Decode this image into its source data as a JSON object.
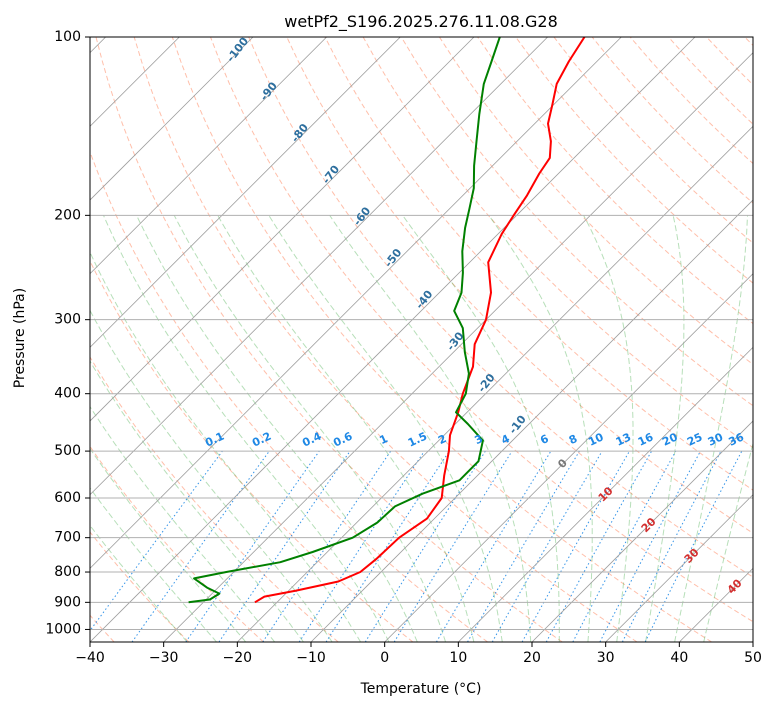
{
  "chart_data": {
    "type": "skew-t",
    "title": "wetPf2_S196.2025.276.11.08.G28",
    "xlabel": "Temperature (°C)",
    "ylabel": "Pressure (hPa)",
    "xlim": [
      -40,
      50
    ],
    "ylim": [
      1050,
      100
    ],
    "y_scale": "log",
    "x_ticks": [
      -40,
      -30,
      -20,
      -10,
      0,
      10,
      20,
      30,
      40,
      50
    ],
    "y_ticks": [
      100,
      200,
      300,
      400,
      500,
      600,
      700,
      800,
      900,
      1000
    ],
    "grid": true,
    "isotherm_step": 10,
    "dry_adiabat_label_values": [
      "-100",
      "-90",
      "-80",
      "-70",
      "-60",
      "-50",
      "-40",
      "-30",
      "-20",
      "-10"
    ],
    "moist_adiabat_label_values": [
      "0",
      "10",
      "20",
      "30",
      "40"
    ],
    "mixing_ratio_labels": [
      "0.1",
      "0.2",
      "0.4",
      "0.6",
      "1",
      "1.5",
      "2",
      "3",
      "4",
      "6",
      "8",
      "10",
      "13",
      "16",
      "20",
      "25",
      "30",
      "36"
    ],
    "colors": {
      "temperature": "#ff0000",
      "dewpoint": "#008000",
      "dry_adiabat": "#ff7043",
      "moist_adiabat": "#4caf50",
      "mixing_ratio": "#1e88e5",
      "dry_adiabat_label": "#2e6f9e",
      "moist_adiabat_label": "#d32f2f",
      "mixing_ratio_label": "#1e88e5",
      "isotherm": "#9e9e9e"
    },
    "series": [
      {
        "key": "temperature",
        "values": [
          {
            "p": 900,
            "t": -23
          },
          {
            "p": 880,
            "t": -22.5
          },
          {
            "p": 860,
            "t": -19
          },
          {
            "p": 830,
            "t": -14.5
          },
          {
            "p": 800,
            "t": -12.8
          },
          {
            "p": 760,
            "t": -12.4
          },
          {
            "p": 700,
            "t": -12.2
          },
          {
            "p": 650,
            "t": -11
          },
          {
            "p": 600,
            "t": -11.8
          },
          {
            "p": 550,
            "t": -14.5
          },
          {
            "p": 500,
            "t": -17.2
          },
          {
            "p": 470,
            "t": -19.2
          },
          {
            "p": 430,
            "t": -21.2
          },
          {
            "p": 400,
            "t": -23.1
          },
          {
            "p": 360,
            "t": -25.4
          },
          {
            "p": 330,
            "t": -28.2
          },
          {
            "p": 300,
            "t": -30
          },
          {
            "p": 270,
            "t": -33
          },
          {
            "p": 240,
            "t": -37.5
          },
          {
            "p": 215,
            "t": -39.5
          },
          {
            "p": 200,
            "t": -40.4
          },
          {
            "p": 185,
            "t": -41.3
          },
          {
            "p": 170,
            "t": -42.6
          },
          {
            "p": 160,
            "t": -43.3
          },
          {
            "p": 150,
            "t": -45.4
          },
          {
            "p": 140,
            "t": -48.2
          },
          {
            "p": 130,
            "t": -50.2
          },
          {
            "p": 120,
            "t": -52.4
          },
          {
            "p": 110,
            "t": -53.8
          },
          {
            "p": 100,
            "t": -55
          }
        ]
      },
      {
        "key": "dewpoint",
        "values": [
          {
            "p": 900,
            "t": -32
          },
          {
            "p": 890,
            "t": -29.5
          },
          {
            "p": 870,
            "t": -29
          },
          {
            "p": 850,
            "t": -31.5
          },
          {
            "p": 820,
            "t": -34.5
          },
          {
            "p": 800,
            "t": -31
          },
          {
            "p": 770,
            "t": -25
          },
          {
            "p": 740,
            "t": -22
          },
          {
            "p": 700,
            "t": -18.5
          },
          {
            "p": 660,
            "t": -17.2
          },
          {
            "p": 620,
            "t": -17
          },
          {
            "p": 590,
            "t": -15
          },
          {
            "p": 560,
            "t": -11.8
          },
          {
            "p": 520,
            "t": -11.8
          },
          {
            "p": 480,
            "t": -14
          },
          {
            "p": 450,
            "t": -18.3
          },
          {
            "p": 430,
            "t": -21.5
          },
          {
            "p": 400,
            "t": -22.7
          },
          {
            "p": 370,
            "t": -25
          },
          {
            "p": 340,
            "t": -28.5
          },
          {
            "p": 310,
            "t": -32
          },
          {
            "p": 290,
            "t": -35.5
          },
          {
            "p": 270,
            "t": -37
          },
          {
            "p": 250,
            "t": -39.5
          },
          {
            "p": 230,
            "t": -42.5
          },
          {
            "p": 210,
            "t": -45.3
          },
          {
            "p": 195,
            "t": -47.3
          },
          {
            "p": 180,
            "t": -49.5
          },
          {
            "p": 165,
            "t": -52.5
          },
          {
            "p": 150,
            "t": -55.5
          },
          {
            "p": 135,
            "t": -58.8
          },
          {
            "p": 120,
            "t": -62.3
          },
          {
            "p": 110,
            "t": -64.3
          },
          {
            "p": 100,
            "t": -66.5
          }
        ]
      }
    ]
  }
}
